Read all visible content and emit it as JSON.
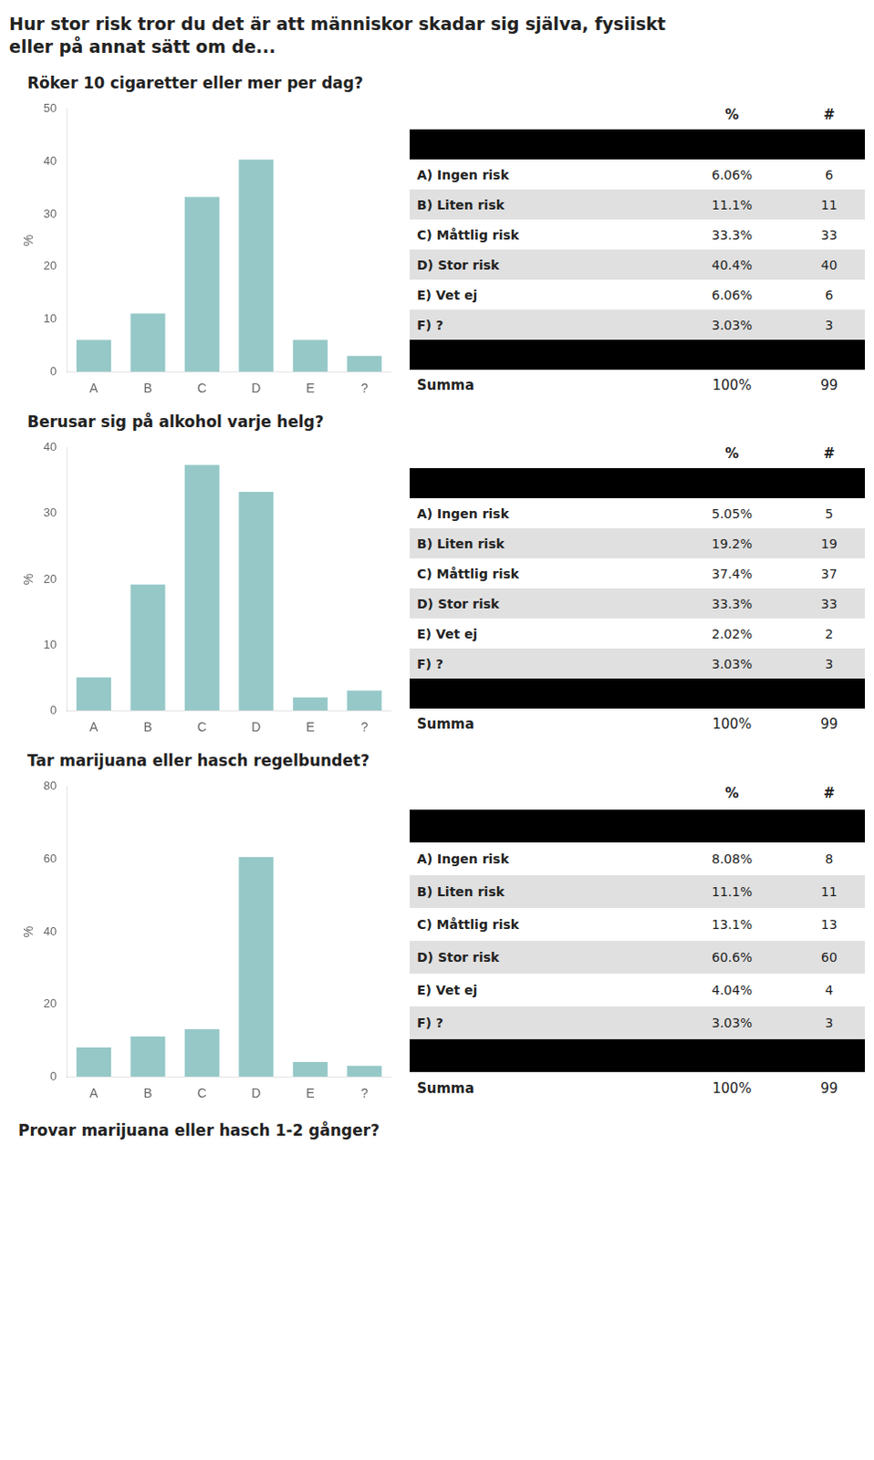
{
  "chart_data": [
    {
      "type": "bar",
      "title": [
        "Hur stor risk tror du det är att människor skadar sig själva, fysiiskt",
        "eller på annat sätt om de..."
      ],
      "subtitle": "Röker 10 cigaretter eller mer per dag?",
      "categories": [
        "A",
        "B",
        "C",
        "D",
        "E",
        "?"
      ],
      "values": [
        6.06,
        11.1,
        33.3,
        40.4,
        6.06,
        3.03
      ],
      "color": "#96c8c8",
      "ylabel": "%",
      "ylim": [
        0,
        50
      ],
      "yticks": [
        0,
        10,
        20,
        30,
        40,
        50
      ],
      "grid": false,
      "table": {
        "columns": [
          "%",
          "#"
        ],
        "rows": [
          [
            "A) Ingen risk",
            "6.06%",
            "6"
          ],
          [
            "B) Liten risk",
            "11.1%",
            "11"
          ],
          [
            "C) Måttlig risk",
            "33.3%",
            "33"
          ],
          [
            "D) Stor risk",
            "40.4%",
            "40"
          ],
          [
            "E) Vet ej",
            "6.06%",
            "6"
          ],
          [
            "F) ?",
            "3.03%",
            "3"
          ]
        ],
        "total": [
          "Summa",
          "100%",
          "99"
        ]
      }
    },
    {
      "type": "bar",
      "subtitle": "Berusar sig på alkohol varje helg?",
      "categories": [
        "A",
        "B",
        "C",
        "D",
        "E",
        "?"
      ],
      "values": [
        5.05,
        19.2,
        37.4,
        33.3,
        2.02,
        3.03
      ],
      "color": "#96c8c8",
      "ylabel": "%",
      "ylim": [
        0,
        40
      ],
      "yticks": [
        0,
        10,
        20,
        30,
        40
      ],
      "grid": false,
      "table": {
        "columns": [
          "%",
          "#"
        ],
        "rows": [
          [
            "A) Ingen risk",
            "5.05%",
            "5"
          ],
          [
            "B) Liten risk",
            "19.2%",
            "19"
          ],
          [
            "C) Måttlig risk",
            "37.4%",
            "37"
          ],
          [
            "D) Stor risk",
            "33.3%",
            "33"
          ],
          [
            "E) Vet ej",
            "2.02%",
            "2"
          ],
          [
            "F) ?",
            "3.03%",
            "3"
          ]
        ],
        "total": [
          "Summa",
          "100%",
          "99"
        ]
      }
    },
    {
      "type": "bar",
      "subtitle": "Tar marijuana eller hasch regelbundet?",
      "categories": [
        "A",
        "B",
        "C",
        "D",
        "E",
        "?"
      ],
      "values": [
        8.08,
        11.1,
        13.1,
        60.6,
        4.04,
        3.03
      ],
      "color": "#96c8c8",
      "ylabel": "%",
      "ylim": [
        0,
        80
      ],
      "yticks": [
        0,
        20,
        40,
        60,
        80
      ],
      "grid": false,
      "table": {
        "columns": [
          "%",
          "#"
        ],
        "rows": [
          [
            "A) Ingen risk",
            "8.08%",
            "8"
          ],
          [
            "B) Liten risk",
            "11.1%",
            "11"
          ],
          [
            "C) Måttlig risk",
            "13.1%",
            "13"
          ],
          [
            "D) Stor risk",
            "60.6%",
            "60"
          ],
          [
            "E) Vet ej",
            "4.04%",
            "4"
          ],
          [
            "F) ?",
            "3.03%",
            "3"
          ]
        ],
        "total": [
          "Summa",
          "100%",
          "99"
        ]
      },
      "annotations": [
        "Provar marijuana eller hasch 1-2 gånger?"
      ]
    }
  ]
}
